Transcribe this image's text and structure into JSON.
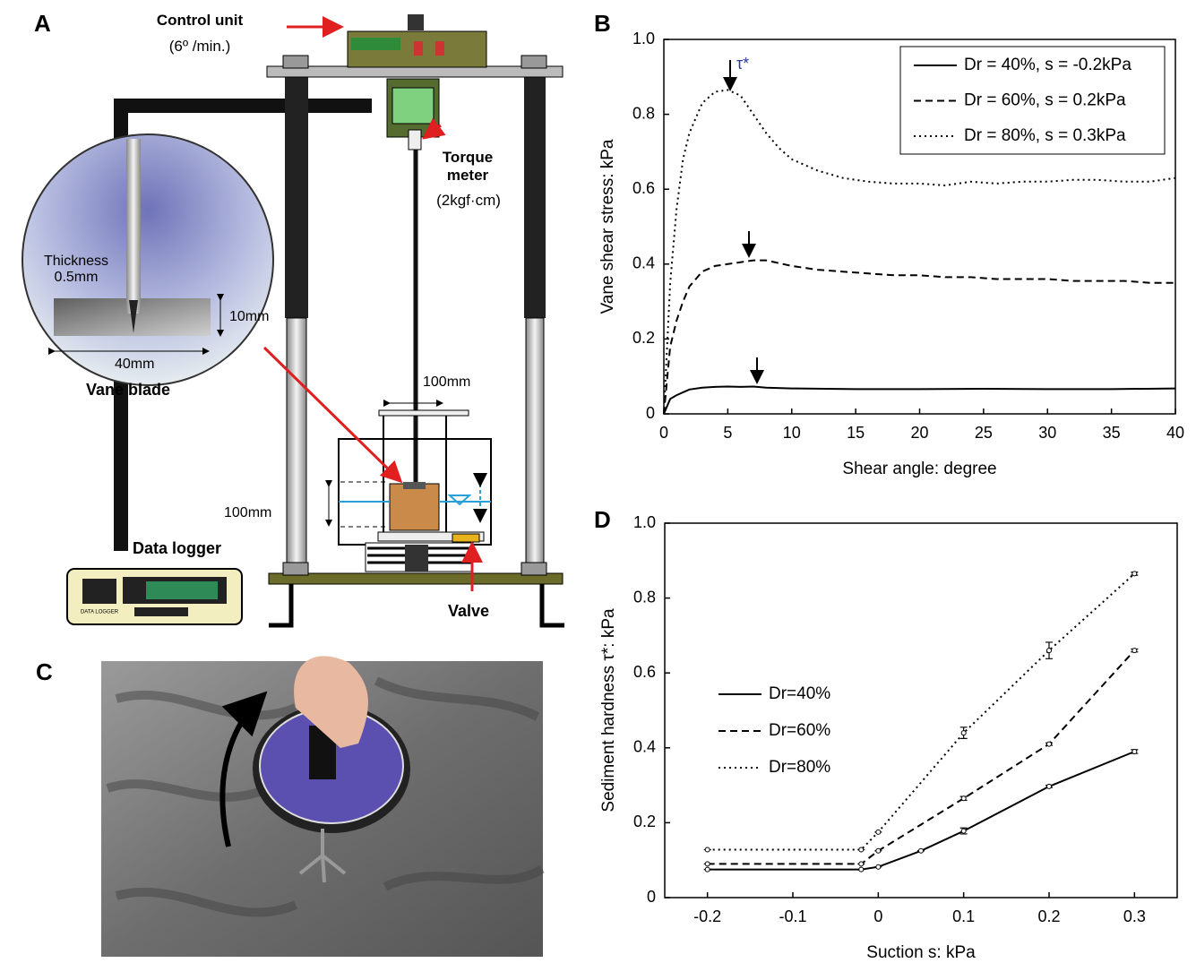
{
  "panels": {
    "A": {
      "label": "A",
      "control_unit": "Control unit",
      "control_rate": "(6º /min.)",
      "torque_meter": "Torque meter",
      "torque_capacity": "(2kgf·cm)",
      "thickness": "Thickness 0.5mm",
      "blade_height": "10mm",
      "blade_width": "40mm",
      "vane_blade": "Vane blade",
      "container_width": "100mm",
      "water_range": "100mm",
      "data_logger": "Data logger",
      "logger_brand": "DATA LOGGER",
      "valve": "Valve"
    },
    "B": {
      "label": "B"
    },
    "C": {
      "label": "C"
    },
    "D": {
      "label": "D"
    }
  },
  "chart_data": [
    {
      "type": "line",
      "xlabel": "Shear angle: degree",
      "ylabel": "Vane shear stress: kPa",
      "annotation": "τ*",
      "xlim": [
        0,
        40
      ],
      "ylim": [
        0,
        1
      ],
      "xticks": [
        0,
        5,
        10,
        15,
        20,
        25,
        30,
        35,
        40
      ],
      "yticks": [
        0,
        0.2,
        0.4,
        0.6,
        0.8,
        {
          "value": 1,
          "label": "1.0"
        }
      ],
      "legend": "upper right",
      "legend_frame": true,
      "series": [
        {
          "name": "Dr = 40%, s = -0.2kPa",
          "color": "#000000",
          "line_style": "solid",
          "x": [
            0,
            0.5,
            1,
            2,
            3,
            4,
            5,
            6,
            7,
            8,
            10,
            15,
            20,
            25,
            30,
            35,
            40
          ],
          "values": [
            0,
            0.04,
            0.05,
            0.065,
            0.07,
            0.072,
            0.073,
            0.072,
            0.073,
            0.07,
            0.068,
            0.066,
            0.066,
            0.067,
            0.066,
            0.066,
            0.068
          ]
        },
        {
          "name": "Dr = 60%, s = 0.2kPa",
          "color": "#000000",
          "line_style": "dashed",
          "x": [
            0,
            0.5,
            1,
            1.5,
            2,
            3,
            4,
            5,
            6,
            7,
            8,
            10,
            12,
            14,
            16,
            18,
            20,
            22,
            24,
            26,
            28,
            30,
            32,
            34,
            36,
            38,
            40
          ],
          "values": [
            0,
            0.18,
            0.25,
            0.3,
            0.34,
            0.38,
            0.395,
            0.4,
            0.405,
            0.41,
            0.41,
            0.395,
            0.385,
            0.38,
            0.375,
            0.37,
            0.37,
            0.365,
            0.365,
            0.36,
            0.36,
            0.36,
            0.355,
            0.355,
            0.355,
            0.35,
            0.35
          ]
        },
        {
          "name": "Dr = 80%, s = 0.3kPa",
          "color": "#000000",
          "line_style": "dotted",
          "x": [
            0,
            0.5,
            1,
            1.5,
            2,
            3,
            4,
            5,
            6,
            7,
            8,
            9,
            10,
            12,
            14,
            16,
            18,
            20,
            22,
            24,
            26,
            28,
            30,
            32,
            34,
            36,
            38,
            40
          ],
          "values": [
            0,
            0.35,
            0.55,
            0.68,
            0.75,
            0.83,
            0.86,
            0.865,
            0.85,
            0.8,
            0.75,
            0.71,
            0.68,
            0.65,
            0.63,
            0.62,
            0.615,
            0.615,
            0.61,
            0.62,
            0.615,
            0.62,
            0.62,
            0.625,
            0.625,
            0.62,
            0.62,
            0.63
          ]
        }
      ]
    },
    {
      "type": "line",
      "xlabel": "Suction s: kPa",
      "ylabel": "Sediment hardness τ*: kPa",
      "xlim": [
        -0.25,
        0.35
      ],
      "ylim": [
        0,
        1
      ],
      "xticks": [
        -0.2,
        -0.1,
        0,
        0.1,
        0.2,
        0.3
      ],
      "yticks": [
        0,
        0.2,
        0.4,
        0.6,
        0.8,
        {
          "value": 1,
          "label": "1.0"
        }
      ],
      "legend": "center left",
      "legend_frame": false,
      "series": [
        {
          "name": "Dr=40%",
          "color": "#000000",
          "line_style": "solid",
          "x": [
            -0.2,
            -0.02,
            0,
            0.05,
            0.1,
            0.2,
            0.3
          ],
          "values": [
            0.075,
            0.075,
            0.082,
            0.125,
            0.178,
            0.297,
            0.39
          ],
          "errors": [
            0,
            0,
            0,
            0,
            0.008,
            0.003,
            0.005
          ]
        },
        {
          "name": "Dr=60%",
          "color": "#000000",
          "line_style": "dashed",
          "x": [
            -0.2,
            -0.02,
            0,
            0.1,
            0.2,
            0.3
          ],
          "values": [
            0.09,
            0.09,
            0.125,
            0.265,
            0.41,
            0.66
          ],
          "errors": [
            0,
            0,
            0,
            0.005,
            0.003,
            0.004
          ]
        },
        {
          "name": "Dr=80%",
          "color": "#000000",
          "line_style": "dotted",
          "x": [
            -0.2,
            -0.02,
            0,
            0.1,
            0.2,
            0.3
          ],
          "values": [
            0.128,
            0.128,
            0.175,
            0.44,
            0.66,
            0.865
          ],
          "errors": [
            0,
            0,
            0,
            0.015,
            0.022,
            0.004
          ]
        }
      ]
    }
  ]
}
